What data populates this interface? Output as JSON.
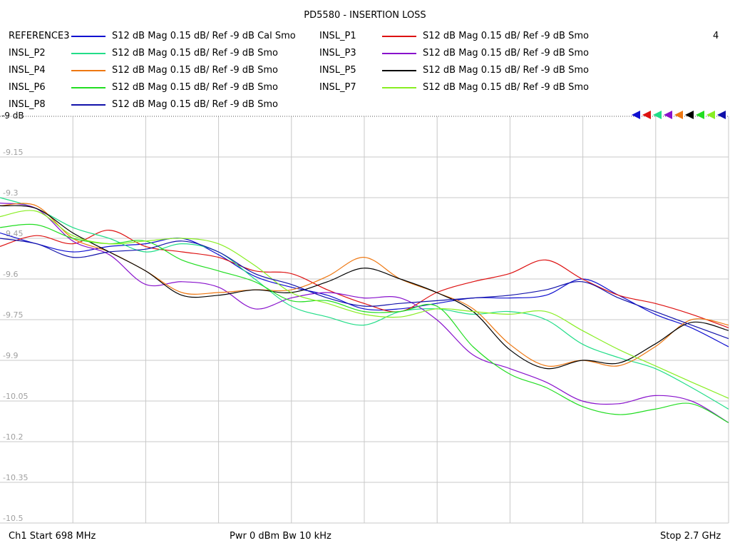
{
  "title": "PD5580 - INSERTION LOSS",
  "channel_number": "4",
  "ref_label": "-9 dB",
  "footer": {
    "start": "Ch1  Start  698 MHz",
    "mid": "Pwr  0 dBm  Bw  10 kHz",
    "stop": "Stop  2.7 GHz"
  },
  "chart_data": {
    "type": "line",
    "title": "PD5580 - INSERTION LOSS",
    "xlabel": "",
    "ylabel": "",
    "x_start_mhz": 698,
    "x_stop_mhz": 2700,
    "x_divisions": 10,
    "ylim": [
      -10.5,
      -9
    ],
    "yticks": [
      "-9",
      "-9.15",
      "-9.3",
      "-9.45",
      "-9.6",
      "-9.75",
      "-9.9",
      "-10.05",
      "-10.2",
      "-10.35",
      "-10.5"
    ],
    "grid": true,
    "series": [
      {
        "name": "REFERENCE3",
        "desc": "S12  dB Mag  0.15 dB/ Ref -9 dB  Cal Smo",
        "color": "#1010d0",
        "x": [
          698,
          798,
          898,
          998,
          1098,
          1198,
          1298,
          1398,
          1498,
          1598,
          1698,
          1798,
          1898,
          1998,
          2098,
          2198,
          2298,
          2398,
          2498,
          2598,
          2700
        ],
        "y": [
          -9.43,
          -9.47,
          -9.5,
          -9.48,
          -9.47,
          -9.45,
          -9.51,
          -9.59,
          -9.63,
          -9.66,
          -9.71,
          -9.71,
          -9.69,
          -9.67,
          -9.67,
          -9.66,
          -9.6,
          -9.66,
          -9.73,
          -9.78,
          -9.85
        ]
      },
      {
        "name": "INSL_P1",
        "desc": "S12  dB Mag  0.15 dB/ Ref -9 dB  Smo",
        "color": "#dd1111",
        "x": [
          698,
          798,
          898,
          998,
          1098,
          1198,
          1298,
          1398,
          1498,
          1598,
          1698,
          1798,
          1898,
          1998,
          2098,
          2198,
          2298,
          2398,
          2498,
          2598,
          2700
        ],
        "y": [
          -9.48,
          -9.44,
          -9.47,
          -9.42,
          -9.48,
          -9.5,
          -9.52,
          -9.57,
          -9.58,
          -9.64,
          -9.69,
          -9.72,
          -9.65,
          -9.61,
          -9.58,
          -9.53,
          -9.6,
          -9.66,
          -9.69,
          -9.73,
          -9.78
        ]
      },
      {
        "name": "INSL_P2",
        "desc": "S12  dB Mag  0.15 dB/ Ref -9 dB  Smo",
        "color": "#22dd88",
        "x": [
          698,
          798,
          898,
          998,
          1098,
          1198,
          1298,
          1398,
          1498,
          1598,
          1698,
          1798,
          1898,
          1998,
          2098,
          2198,
          2298,
          2398,
          2498,
          2598,
          2700
        ],
        "y": [
          -9.3,
          -9.34,
          -9.41,
          -9.45,
          -9.5,
          -9.47,
          -9.5,
          -9.6,
          -9.7,
          -9.74,
          -9.77,
          -9.72,
          -9.71,
          -9.73,
          -9.72,
          -9.75,
          -9.84,
          -9.89,
          -9.93,
          -10.0,
          -10.08
        ]
      },
      {
        "name": "INSL_P3",
        "desc": "S12  dB Mag  0.15 dB/ Ref -9 dB  Smo",
        "color": "#8811cc",
        "x": [
          698,
          798,
          898,
          998,
          1098,
          1198,
          1298,
          1398,
          1498,
          1598,
          1698,
          1798,
          1898,
          1998,
          2098,
          2198,
          2298,
          2398,
          2498,
          2598,
          2700
        ],
        "y": [
          -9.32,
          -9.34,
          -9.46,
          -9.51,
          -9.62,
          -9.61,
          -9.63,
          -9.71,
          -9.67,
          -9.65,
          -9.67,
          -9.67,
          -9.75,
          -9.88,
          -9.93,
          -9.98,
          -10.05,
          -10.06,
          -10.03,
          -10.05,
          -10.13
        ]
      },
      {
        "name": "INSL_P4",
        "desc": "S12  dB Mag  0.15 dB/ Ref -9 dB  Smo",
        "color": "#ee7711",
        "x": [
          698,
          798,
          898,
          998,
          1098,
          1198,
          1298,
          1398,
          1498,
          1598,
          1698,
          1798,
          1898,
          1998,
          2098,
          2198,
          2298,
          2398,
          2498,
          2598,
          2700
        ],
        "y": [
          -9.33,
          -9.33,
          -9.45,
          -9.5,
          -9.57,
          -9.65,
          -9.65,
          -9.64,
          -9.64,
          -9.59,
          -9.52,
          -9.6,
          -9.65,
          -9.71,
          -9.84,
          -9.92,
          -9.9,
          -9.92,
          -9.85,
          -9.75,
          -9.77
        ]
      },
      {
        "name": "INSL_P5",
        "desc": "S12  dB Mag  0.15 dB/ Ref -9 dB  Smo",
        "color": "#000000",
        "x": [
          698,
          798,
          898,
          998,
          1098,
          1198,
          1298,
          1398,
          1498,
          1598,
          1698,
          1798,
          1898,
          1998,
          2098,
          2198,
          2298,
          2398,
          2498,
          2598,
          2700
        ],
        "y": [
          -9.33,
          -9.34,
          -9.43,
          -9.5,
          -9.57,
          -9.66,
          -9.66,
          -9.64,
          -9.65,
          -9.61,
          -9.56,
          -9.6,
          -9.65,
          -9.72,
          -9.86,
          -9.93,
          -9.9,
          -9.91,
          -9.84,
          -9.76,
          -9.79
        ]
      },
      {
        "name": "INSL_P6",
        "desc": "S12  dB Mag  0.15 dB/ Ref -9 dB  Smo",
        "color": "#22dd22",
        "x": [
          698,
          798,
          898,
          998,
          1098,
          1198,
          1298,
          1398,
          1498,
          1598,
          1698,
          1798,
          1898,
          1998,
          2098,
          2198,
          2298,
          2398,
          2498,
          2598,
          2700
        ],
        "y": [
          -9.41,
          -9.4,
          -9.45,
          -9.47,
          -9.46,
          -9.53,
          -9.57,
          -9.61,
          -9.68,
          -9.68,
          -9.72,
          -9.72,
          -9.7,
          -9.85,
          -9.95,
          -10.0,
          -10.07,
          -10.1,
          -10.08,
          -10.06,
          -10.13
        ]
      },
      {
        "name": "INSL_P7",
        "desc": "S12  dB Mag  0.15 dB/ Ref -9 dB  Smo",
        "color": "#88ee22",
        "x": [
          698,
          798,
          898,
          998,
          1098,
          1198,
          1298,
          1398,
          1498,
          1598,
          1698,
          1798,
          1898,
          1998,
          2098,
          2198,
          2298,
          2398,
          2498,
          2598,
          2700
        ],
        "y": [
          -9.37,
          -9.35,
          -9.44,
          -9.47,
          -9.46,
          -9.45,
          -9.47,
          -9.55,
          -9.65,
          -9.69,
          -9.73,
          -9.74,
          -9.71,
          -9.72,
          -9.73,
          -9.72,
          -9.79,
          -9.86,
          -9.92,
          -9.98,
          -10.04
        ]
      },
      {
        "name": "INSL_P8",
        "desc": "S12  dB Mag  0.15 dB/ Ref -9 dB  Smo",
        "color": "#1111aa",
        "x": [
          698,
          798,
          898,
          998,
          1098,
          1198,
          1298,
          1398,
          1498,
          1598,
          1698,
          1798,
          1898,
          1998,
          2098,
          2198,
          2298,
          2398,
          2498,
          2598,
          2700
        ],
        "y": [
          -9.45,
          -9.47,
          -9.52,
          -9.5,
          -9.49,
          -9.46,
          -9.5,
          -9.58,
          -9.62,
          -9.67,
          -9.7,
          -9.69,
          -9.68,
          -9.67,
          -9.66,
          -9.64,
          -9.61,
          -9.67,
          -9.72,
          -9.77,
          -9.82
        ]
      }
    ]
  }
}
